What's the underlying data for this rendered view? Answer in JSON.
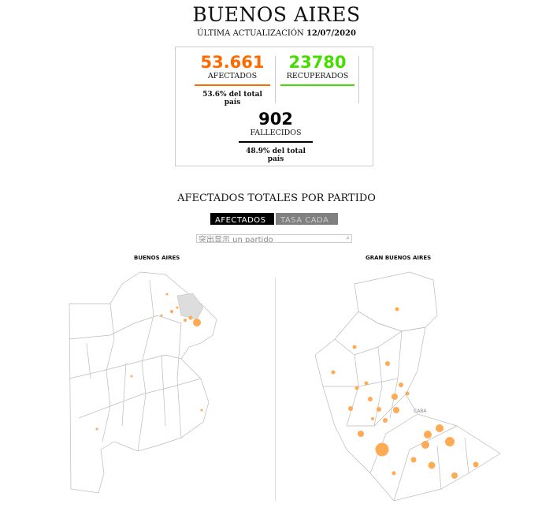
{
  "title": "BUENOS AIRES",
  "update_label": "ÚLTIMA ACTUALIZACIÓN",
  "update_date": "12/07/2020",
  "stats": {
    "afectados": {
      "value": "53.661",
      "label": "AFECTADOS",
      "note": "53.6% del total país",
      "color": "#ff6a00"
    },
    "recuperados": {
      "value": "23780",
      "label": "RECUPERADOS",
      "color": "#44dd00"
    },
    "fallecidos": {
      "value": "902",
      "label": "FALLECIDOS",
      "note": "48.9% del total país",
      "color": "#000000"
    }
  },
  "section_title": "AFECTADOS TOTALES POR PARTIDO",
  "tabs": [
    {
      "label": "AFECTADOS",
      "active": true
    },
    {
      "label": "TASA CADA",
      "active": false
    }
  ],
  "search": {
    "placeholder": "突出显示 un partido",
    "icon": "search-icon"
  },
  "maps": {
    "left_title": "BUENOS AIRES",
    "right_title": "GRAN BUENOS AIRES",
    "caba_label": "CABA",
    "bubble_color": "#ffaa55"
  }
}
